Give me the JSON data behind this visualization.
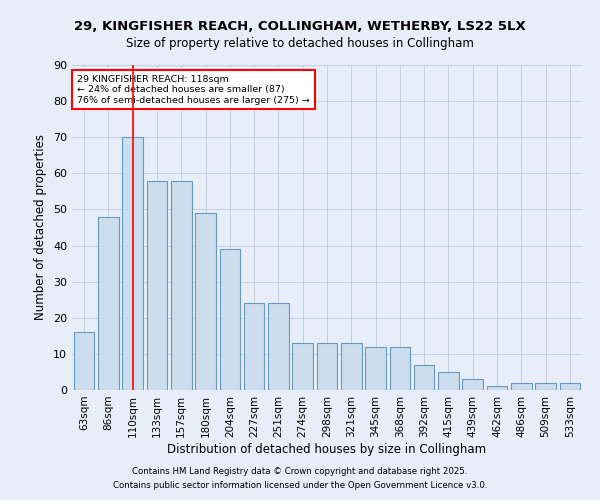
{
  "title1": "29, KINGFISHER REACH, COLLINGHAM, WETHERBY, LS22 5LX",
  "title2": "Size of property relative to detached houses in Collingham",
  "xlabel": "Distribution of detached houses by size in Collingham",
  "ylabel": "Number of detached properties",
  "categories": [
    "63sqm",
    "86sqm",
    "110sqm",
    "133sqm",
    "157sqm",
    "180sqm",
    "204sqm",
    "227sqm",
    "251sqm",
    "274sqm",
    "298sqm",
    "321sqm",
    "345sqm",
    "368sqm",
    "392sqm",
    "415sqm",
    "439sqm",
    "462sqm",
    "486sqm",
    "509sqm",
    "533sqm"
  ],
  "values": [
    16,
    48,
    70,
    58,
    58,
    49,
    39,
    24,
    24,
    13,
    13,
    13,
    12,
    12,
    7,
    5,
    3,
    1,
    2,
    2,
    2
  ],
  "bar_color": "#ccdded",
  "bar_edge_color": "#6699bb",
  "bg_color": "#e8eef8",
  "grid_color": "#bbccdd",
  "vline_x": 2,
  "vline_color": "red",
  "annotation_line1": "29 KINGFISHER REACH: 118sqm",
  "annotation_line2": "← 24% of detached houses are smaller (87)",
  "annotation_line3": "76% of semi-detached houses are larger (275) →",
  "footer1": "Contains HM Land Registry data © Crown copyright and database right 2025.",
  "footer2": "Contains public sector information licensed under the Open Government Licence v3.0.",
  "ylim": [
    0,
    90
  ],
  "yticks": [
    0,
    10,
    20,
    30,
    40,
    50,
    60,
    70,
    80,
    90
  ]
}
